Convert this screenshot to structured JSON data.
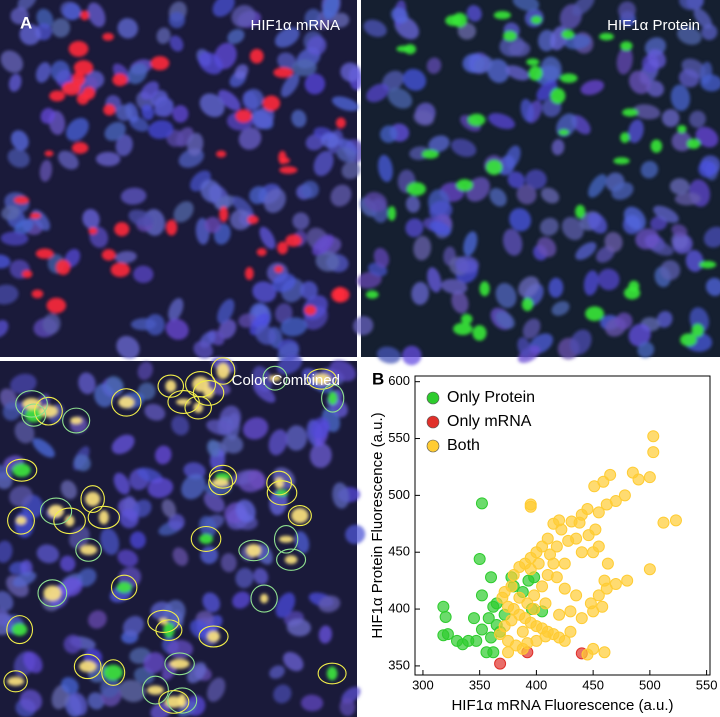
{
  "panels": {
    "a_label": "A",
    "b_label": "B",
    "mrna_title": "HIF1α mRNA",
    "protein_title": "HIF1α Protein",
    "combined_title": "Color Combined"
  },
  "chart_data": {
    "type": "scatter",
    "x_label": "HIF1α mRNA Fluorescence (a.u.)",
    "y_label": "HIF1α Protein Fluorescence (a.u.)",
    "xlim": [
      293,
      553
    ],
    "ylim": [
      342,
      605
    ],
    "xticks": [
      300,
      350,
      400,
      450,
      500,
      550
    ],
    "yticks": [
      350,
      400,
      450,
      500,
      550,
      600
    ],
    "legend": "upper left",
    "series": [
      {
        "name": "Only Protein",
        "color": "#2ecc2e",
        "x": [
          352,
          350,
          360,
          378,
          352,
          318,
          320,
          318,
          322,
          330,
          340,
          347,
          352,
          345,
          358,
          362,
          365,
          372,
          388,
          393,
          398,
          396,
          356,
          362,
          360,
          368,
          380,
          405,
          335,
          365
        ],
        "y": [
          493,
          444,
          428,
          428,
          412,
          402,
          393,
          377,
          378,
          372,
          372,
          372,
          382,
          392,
          392,
          402,
          405,
          395,
          415,
          425,
          428,
          400,
          362,
          362,
          375,
          380,
          420,
          398,
          369,
          386
        ]
      },
      {
        "name": "Only mRNA",
        "color": "#e0302a",
        "x": [
          368,
          392,
          440
        ],
        "y": [
          352,
          362,
          361
        ]
      },
      {
        "name": "Both",
        "color": "#ffcc33",
        "x": [
          503,
          503,
          485,
          465,
          459,
          451,
          500,
          490,
          478,
          470,
          462,
          455,
          445,
          440,
          438,
          431,
          420,
          415,
          395,
          395,
          512,
          523,
          500,
          480,
          463,
          460,
          452,
          446,
          435,
          428,
          422,
          418,
          410,
          412,
          405,
          400,
          395,
          390,
          385,
          380,
          378,
          372,
          370,
          375,
          380,
          385,
          390,
          395,
          400,
          405,
          410,
          415,
          420,
          425,
          430,
          440,
          448,
          455,
          462,
          470,
          458,
          450,
          435,
          425,
          418,
          410,
          405,
          398,
          392,
          385,
          378,
          372,
          368,
          375,
          382,
          388,
          392,
          400,
          408,
          420,
          430,
          445,
          450,
          460,
          395,
          402,
          415,
          425,
          440,
          450,
          455,
          398,
          408,
          388,
          375
        ],
        "y": [
          552,
          538,
          520,
          518,
          512,
          508,
          516,
          514,
          500,
          495,
          492,
          485,
          488,
          483,
          476,
          477,
          478,
          475,
          492,
          490,
          476,
          478,
          435,
          425,
          440,
          425,
          470,
          465,
          462,
          460,
          470,
          455,
          462,
          448,
          455,
          450,
          445,
          440,
          437,
          430,
          420,
          415,
          410,
          402,
          400,
          395,
          392,
          388,
          385,
          383,
          380,
          378,
          375,
          372,
          380,
          392,
          405,
          412,
          418,
          422,
          402,
          398,
          412,
          418,
          428,
          430,
          420,
          412,
          405,
          410,
          390,
          385,
          378,
          372,
          368,
          365,
          370,
          372,
          376,
          395,
          398,
          360,
          365,
          362,
          435,
          440,
          440,
          440,
          450,
          450,
          455,
          400,
          405,
          380,
          362
        ]
      }
    ]
  }
}
